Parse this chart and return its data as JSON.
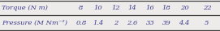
{
  "row1_label": "Torque (N m)",
  "row2_label": "Pressure (M Nm⁻²)",
  "row1_values": [
    "8",
    "10",
    "12",
    "14",
    "16",
    "18",
    "20",
    "22"
  ],
  "row2_values": [
    "0.8",
    "1.4",
    "2",
    "2.6",
    "33",
    "39",
    "4.4",
    "5"
  ],
  "bg_color": "#eeecea",
  "text_color": "#3a3a8c",
  "border_color": "#444444",
  "font_size": 6.0
}
